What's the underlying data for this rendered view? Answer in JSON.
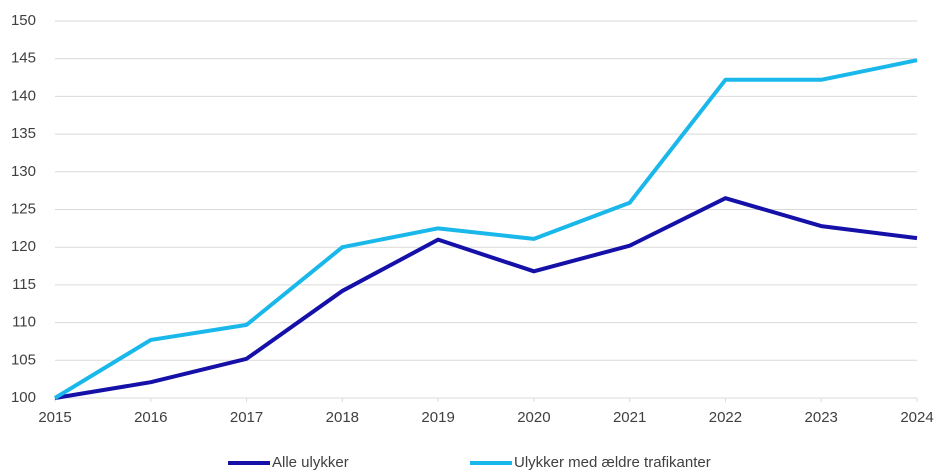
{
  "chart_data": {
    "type": "line",
    "x": [
      2015,
      2016,
      2017,
      2018,
      2019,
      2020,
      2021,
      2022,
      2023,
      2024
    ],
    "xlim": [
      2015,
      2024
    ],
    "xticks": [
      2015,
      2016,
      2017,
      2018,
      2019,
      2020,
      2021,
      2022,
      2023,
      2024
    ],
    "ylim": [
      100,
      150
    ],
    "yticks": [
      100,
      105,
      110,
      115,
      120,
      125,
      130,
      135,
      140,
      145,
      150
    ],
    "grid": true,
    "legend": "bottom",
    "series": [
      {
        "name": "Alle ulykker",
        "color": "#1510a8",
        "values": [
          100,
          102.1,
          105.2,
          114.2,
          121,
          116.8,
          120.2,
          126.5,
          122.8,
          121.2
        ]
      },
      {
        "name": "Ulykker med ældre trafikanter",
        "color": "#1ab8ea",
        "values": [
          100,
          107.7,
          109.7,
          120,
          122.5,
          121.1,
          125.9,
          142.2,
          142.2,
          144.8
        ]
      }
    ]
  }
}
